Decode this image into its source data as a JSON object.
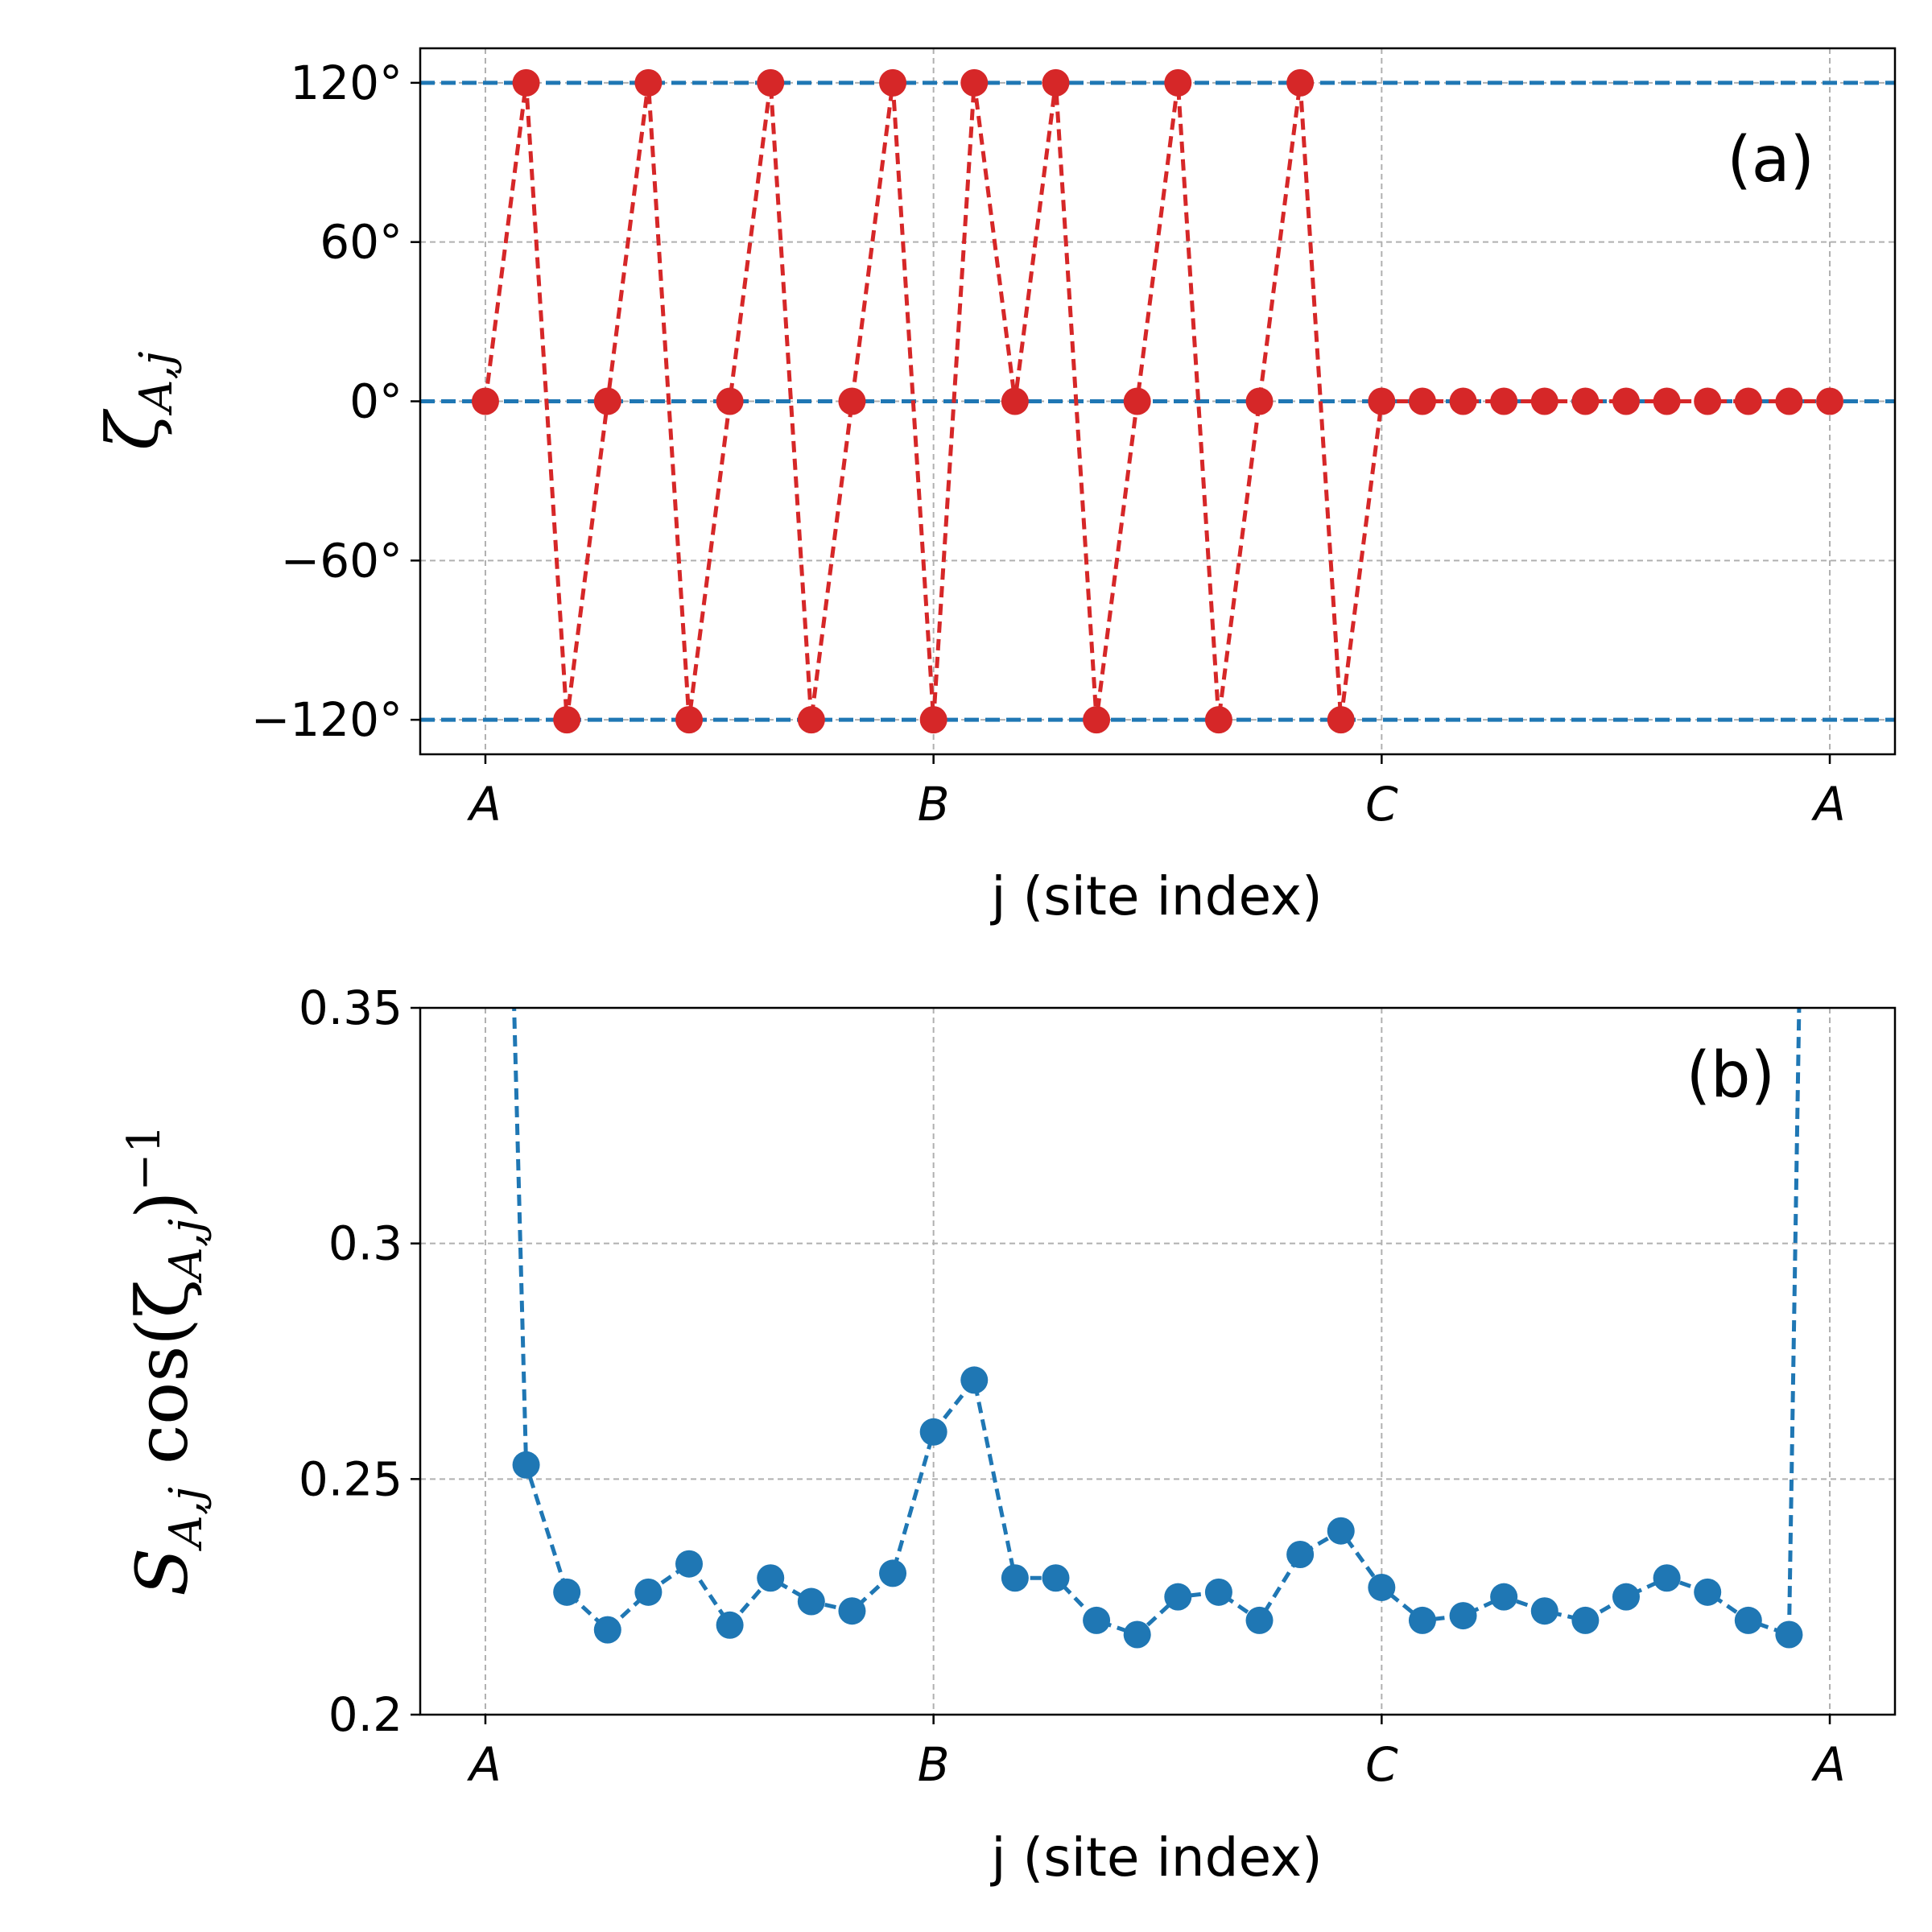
{
  "chart_data": [
    {
      "panel": "(a)",
      "type": "line",
      "xlabel": "j (site index)",
      "ylabel": "ζ_{A,j}",
      "x_tick_labels": [
        "A",
        "B",
        "C",
        "A"
      ],
      "y_ticks": [
        {
          "value": 120,
          "label": "120°"
        },
        {
          "value": 60,
          "label": "60°"
        },
        {
          "value": 0,
          "label": "0°"
        },
        {
          "value": -60,
          "label": "−60°"
        },
        {
          "value": -120,
          "label": "−120°"
        }
      ],
      "ylim": [
        -133,
        133
      ],
      "xlim": [
        -1.6,
        34.6
      ],
      "grid": true,
      "x_ticks_positions": [
        0,
        11,
        22,
        33
      ],
      "reference_lines": [
        {
          "value": 120,
          "color": "#1f77b4",
          "style": "dashed"
        },
        {
          "value": 0,
          "color": "#1f77b4",
          "style": "dashed"
        },
        {
          "value": -120,
          "color": "#1f77b4",
          "style": "dashed"
        }
      ],
      "series": [
        {
          "color": "#d62728",
          "style": "dashed-with-markers",
          "x": [
            0,
            1,
            2,
            3,
            4,
            5,
            6,
            7,
            8,
            9,
            10,
            11,
            12,
            13,
            14,
            15,
            16,
            17,
            18,
            19,
            20,
            21,
            22,
            23,
            24,
            25,
            26,
            27,
            28,
            29,
            30,
            31,
            32,
            33
          ],
          "values": [
            0,
            120,
            -120,
            0,
            120,
            -120,
            0,
            120,
            -120,
            0,
            120,
            -120,
            120,
            0,
            120,
            -120,
            0,
            120,
            -120,
            0,
            120,
            -120,
            0,
            0,
            0,
            0,
            0,
            0,
            0,
            0,
            0,
            0,
            0,
            0
          ]
        }
      ]
    },
    {
      "panel": "(b)",
      "type": "line",
      "xlabel": "j (site index)",
      "ylabel": "S_{A,j} cos(ζ_{A,j})^{−1}",
      "x_tick_labels": [
        "A",
        "B",
        "C",
        "A"
      ],
      "y_ticks": [
        {
          "value": 0.35,
          "label": "0.35"
        },
        {
          "value": 0.3,
          "label": "0.3"
        },
        {
          "value": 0.25,
          "label": "0.25"
        },
        {
          "value": 0.2,
          "label": "0.2"
        }
      ],
      "ylim": [
        0.2,
        0.35
      ],
      "xlim": [
        -1.6,
        34.6
      ],
      "grid": true,
      "x_ticks_positions": [
        0,
        11,
        22,
        33
      ],
      "series": [
        {
          "color": "#1f77b4",
          "style": "dashed-with-markers",
          "x": [
            1,
            2,
            3,
            4,
            5,
            6,
            7,
            8,
            9,
            10,
            11,
            12,
            13,
            14,
            15,
            16,
            17,
            18,
            19,
            20,
            21,
            22,
            23,
            24,
            25,
            26,
            27,
            28,
            29,
            30,
            31,
            32
          ],
          "values": [
            0.253,
            0.226,
            0.218,
            0.226,
            0.232,
            0.219,
            0.229,
            0.224,
            0.222,
            0.23,
            0.26,
            0.271,
            0.229,
            0.229,
            0.22,
            0.217,
            0.225,
            0.226,
            0.22,
            0.234,
            0.239,
            0.227,
            0.22,
            0.221,
            0.225,
            0.222,
            0.22,
            0.225,
            0.229,
            0.226,
            0.22,
            0.217
          ]
        }
      ],
      "divergent_ends": [
        {
          "from_x": 1,
          "to_x": 0.7,
          "to_value": 0.35
        },
        {
          "from_x": 32,
          "to_x": 32.25,
          "to_value": 0.35
        }
      ]
    }
  ],
  "panels_text": {
    "a_label": "(a)",
    "b_label": "(b)"
  }
}
